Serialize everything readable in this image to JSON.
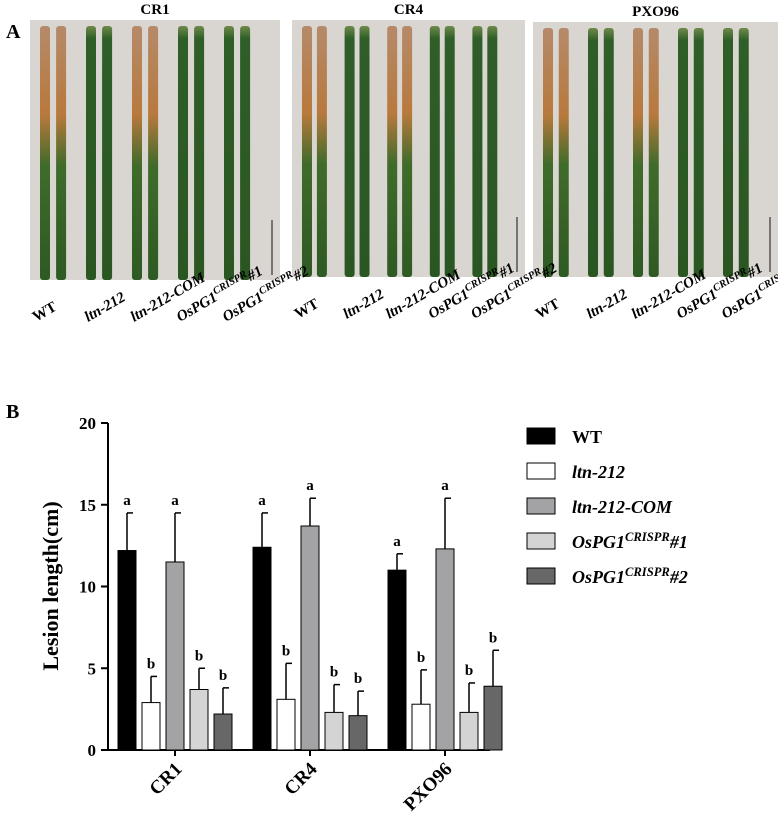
{
  "panel_a": {
    "label": "A"
  },
  "chart_data": {
    "type": "bar",
    "panel_label": "B",
    "y_label": "Lesion length(cm)",
    "categories": [
      "CR1",
      "CR4",
      "PXO96"
    ],
    "ylim": [
      0,
      20
    ],
    "yticks": [
      0,
      5,
      10,
      15,
      20
    ],
    "series": [
      {
        "name": [
          "WT"
        ],
        "color": "#000000",
        "values": [
          12.2,
          12.4,
          11.0
        ],
        "errors": [
          2.3,
          2.1,
          1.0
        ],
        "letters": [
          "a",
          "a",
          "a"
        ]
      },
      {
        "name": [
          "ltn-212"
        ],
        "color": "#ffffff",
        "values": [
          2.9,
          3.1,
          2.8
        ],
        "errors": [
          1.6,
          2.2,
          2.1
        ],
        "letters": [
          "b",
          "b",
          "b"
        ]
      },
      {
        "name": [
          "ltn-212-COM"
        ],
        "color": "#a3a3a5",
        "values": [
          11.5,
          13.7,
          12.3
        ],
        "errors": [
          3.0,
          1.7,
          3.1
        ],
        "letters": [
          "a",
          "a",
          "a"
        ]
      },
      {
        "name": [
          "OsPG1",
          "CRISPR",
          "#1"
        ],
        "color": "#d4d4d4",
        "values": [
          3.7,
          2.3,
          2.3
        ],
        "errors": [
          1.3,
          1.7,
          1.8
        ],
        "letters": [
          "b",
          "b",
          "b"
        ]
      },
      {
        "name": [
          "OsPG1",
          "CRISPR",
          "#2"
        ],
        "color": "#676767",
        "values": [
          2.2,
          2.1,
          3.9
        ],
        "errors": [
          1.6,
          1.5,
          2.2
        ],
        "letters": [
          "b",
          "b",
          "b"
        ]
      }
    ]
  }
}
